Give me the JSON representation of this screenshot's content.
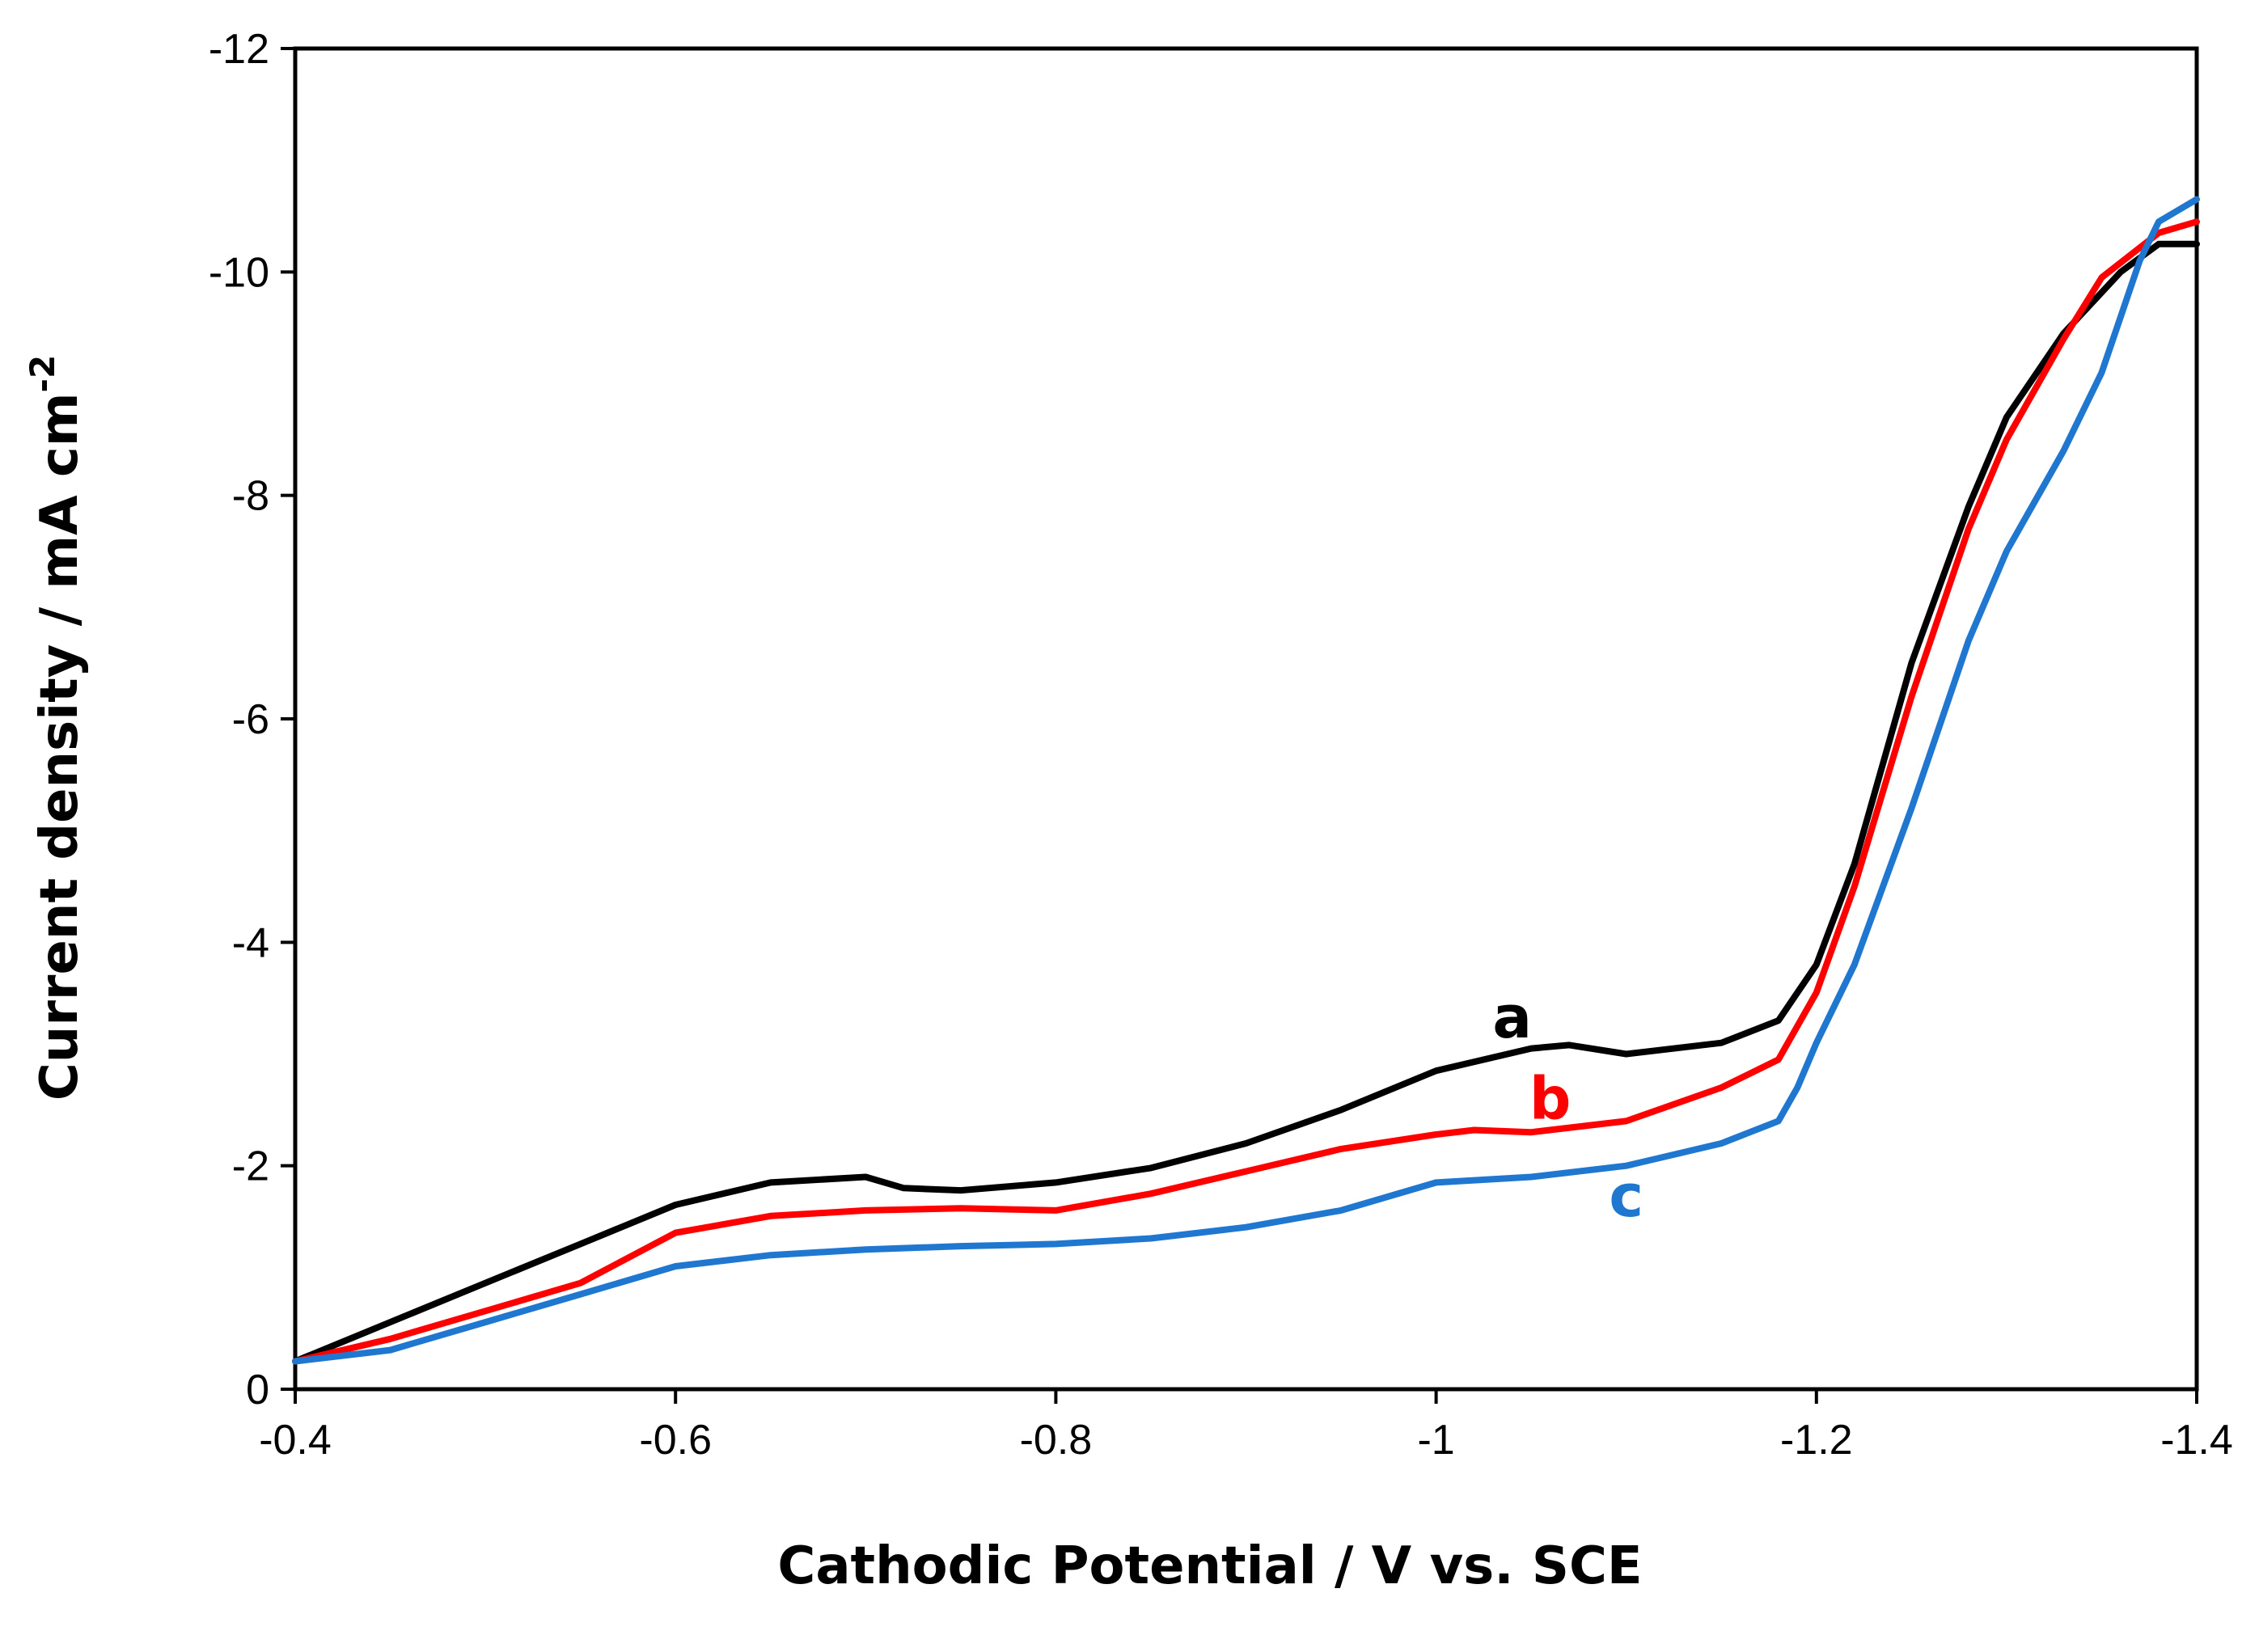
{
  "chart_data": {
    "type": "line",
    "title": "",
    "xlabel": "Cathodic Potential / V vs. SCE",
    "ylabel": "Current density / mA cm",
    "ylabel_superscript": "-2",
    "xlim": [
      -0.4,
      -1.4
    ],
    "ylim": [
      0,
      -12
    ],
    "x_ticks": [
      -0.4,
      -0.6,
      -0.8,
      -1.0,
      -1.2,
      -1.4
    ],
    "x_tick_labels": [
      "-0.4",
      "-0.6",
      "-0.8",
      "-1",
      "-1.2",
      "-1.4"
    ],
    "y_ticks": [
      0,
      -2,
      -4,
      -6,
      -8,
      -10,
      -12
    ],
    "y_tick_labels": [
      "0",
      "-2",
      "-4",
      "-6",
      "-8",
      "-10",
      "-12"
    ],
    "grid": false,
    "legend": "none",
    "series": [
      {
        "name": "a",
        "color": "#000000",
        "label_at": [
          -1.04,
          -3.15
        ],
        "x": [
          -0.4,
          -0.45,
          -0.5,
          -0.55,
          -0.6,
          -0.65,
          -0.7,
          -0.72,
          -0.75,
          -0.8,
          -0.85,
          -0.9,
          -0.95,
          -1.0,
          -1.05,
          -1.07,
          -1.1,
          -1.15,
          -1.18,
          -1.2,
          -1.22,
          -1.25,
          -1.28,
          -1.3,
          -1.33,
          -1.36,
          -1.38,
          -1.4
        ],
        "y": [
          -0.25,
          -0.6,
          -0.95,
          -1.3,
          -1.65,
          -1.85,
          -1.9,
          -1.8,
          -1.78,
          -1.85,
          -1.98,
          -2.2,
          -2.5,
          -2.85,
          -3.05,
          -3.08,
          -3.0,
          -3.1,
          -3.3,
          -3.8,
          -4.7,
          -6.5,
          -7.9,
          -8.7,
          -9.45,
          -10.0,
          -10.25,
          -10.25
        ]
      },
      {
        "name": "b",
        "color": "#ff0000",
        "label_at": [
          -1.06,
          -2.42
        ],
        "x": [
          -0.4,
          -0.45,
          -0.5,
          -0.55,
          -0.6,
          -0.65,
          -0.7,
          -0.75,
          -0.8,
          -0.85,
          -0.9,
          -0.95,
          -1.0,
          -1.02,
          -1.05,
          -1.1,
          -1.15,
          -1.18,
          -1.2,
          -1.22,
          -1.25,
          -1.28,
          -1.3,
          -1.33,
          -1.35,
          -1.38,
          -1.4
        ],
        "y": [
          -0.25,
          -0.45,
          -0.7,
          -0.95,
          -1.4,
          -1.55,
          -1.6,
          -1.62,
          -1.6,
          -1.75,
          -1.95,
          -2.15,
          -2.28,
          -2.32,
          -2.3,
          -2.4,
          -2.7,
          -2.95,
          -3.55,
          -4.5,
          -6.2,
          -7.7,
          -8.5,
          -9.4,
          -9.95,
          -10.35,
          -10.45
        ]
      },
      {
        "name": "c",
        "color": "#1f77d0",
        "label_at": [
          -1.1,
          -1.55
        ],
        "x": [
          -0.4,
          -0.45,
          -0.5,
          -0.55,
          -0.6,
          -0.65,
          -0.7,
          -0.75,
          -0.8,
          -0.85,
          -0.9,
          -0.95,
          -1.0,
          -1.05,
          -1.1,
          -1.15,
          -1.18,
          -1.19,
          -1.2,
          -1.22,
          -1.25,
          -1.28,
          -1.3,
          -1.33,
          -1.35,
          -1.37,
          -1.38,
          -1.39,
          -1.4
        ],
        "y": [
          -0.25,
          -0.35,
          -0.6,
          -0.85,
          -1.1,
          -1.2,
          -1.25,
          -1.28,
          -1.3,
          -1.35,
          -1.45,
          -1.6,
          -1.85,
          -1.9,
          -2.0,
          -2.2,
          -2.4,
          -2.7,
          -3.1,
          -3.8,
          -5.2,
          -6.7,
          -7.5,
          -8.4,
          -9.1,
          -10.1,
          -10.45,
          -10.55,
          -10.65
        ]
      }
    ]
  }
}
